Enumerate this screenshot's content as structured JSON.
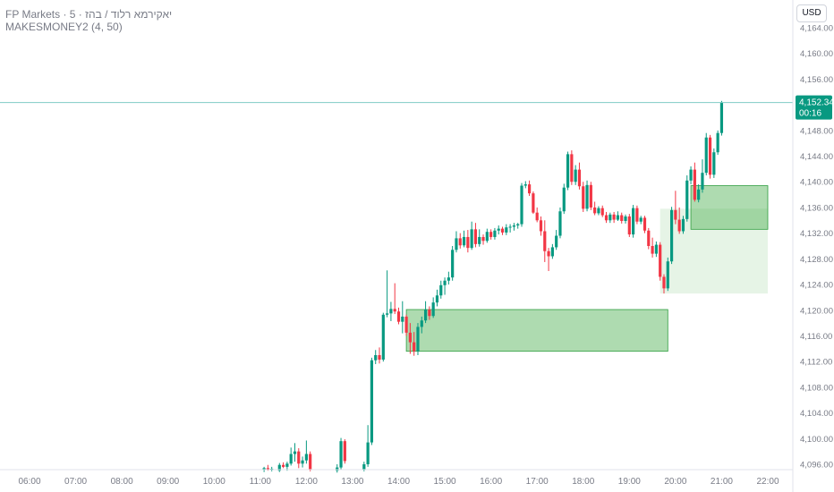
{
  "header": {
    "symbol_line": "FP Markets · 5 · יאקירמא רלוד / בהז",
    "indicator_line": "MAKESMONEY2 (4, 50)"
  },
  "currency_button": "USD",
  "last_price": {
    "value": "4,152.34",
    "countdown": "00:16"
  },
  "colors": {
    "up": "#089981",
    "down": "#f23645",
    "zone": "#4caf50",
    "price_line": "#80cbc4",
    "axis_text": "#787b86"
  },
  "chart_data": {
    "type": "candlestick",
    "x_tick_labels": [
      "06:00",
      "07:00",
      "08:00",
      "09:00",
      "10:00",
      "11:00",
      "12:00",
      "13:00",
      "14:00",
      "15:00",
      "16:00",
      "17:00",
      "18:00",
      "19:00",
      "20:00",
      "21:00",
      "22:00"
    ],
    "y_tick_labels": [
      "4,164.00",
      "4,160.00",
      "4,156.00",
      "4,148.00",
      "4,144.00",
      "4,140.00",
      "4,136.00",
      "4,132.00",
      "4,128.00",
      "4,124.00",
      "4,120.00",
      "4,116.00",
      "4,112.00",
      "4,108.00",
      "4,104.00",
      "4,100.00",
      "4,096.00"
    ],
    "ylim": [
      4094.5,
      4165
    ],
    "last_price": 4152.34,
    "candles": [
      {
        "t": "11:05",
        "o": 4095.2,
        "h": 4095.6,
        "l": 4094.8,
        "c": 4095.4
      },
      {
        "t": "11:10",
        "o": 4095.4,
        "h": 4095.9,
        "l": 4095.0,
        "c": 4095.1
      },
      {
        "t": "11:15",
        "o": 4095.1,
        "h": 4095.6,
        "l": 4094.9,
        "c": 4095.3
      },
      {
        "t": "11:25",
        "o": 4095.0,
        "h": 4096.2,
        "l": 4094.8,
        "c": 4095.9
      },
      {
        "t": "11:30",
        "o": 4095.9,
        "h": 4096.3,
        "l": 4095.4,
        "c": 4095.6
      },
      {
        "t": "11:35",
        "o": 4095.6,
        "h": 4096.4,
        "l": 4095.0,
        "c": 4096.1
      },
      {
        "t": "11:40",
        "o": 4096.1,
        "h": 4098.6,
        "l": 4095.8,
        "c": 4097.6
      },
      {
        "t": "11:45",
        "o": 4097.6,
        "h": 4099.3,
        "l": 4096.4,
        "c": 4098.0
      },
      {
        "t": "11:50",
        "o": 4098.0,
        "h": 4098.5,
        "l": 4095.4,
        "c": 4096.1
      },
      {
        "t": "11:55",
        "o": 4096.1,
        "h": 4097.2,
        "l": 4095.5,
        "c": 4096.6
      },
      {
        "t": "12:00",
        "o": 4096.6,
        "h": 4099.7,
        "l": 4096.1,
        "c": 4097.6
      },
      {
        "t": "12:05",
        "o": 4097.6,
        "h": 4098.0,
        "l": 4094.9,
        "c": 4095.2
      },
      {
        "t": "12:40",
        "o": 4095.0,
        "h": 4096.0,
        "l": 4094.7,
        "c": 4095.5
      },
      {
        "t": "12:45",
        "o": 4095.5,
        "h": 4100.1,
        "l": 4095.2,
        "c": 4099.6
      },
      {
        "t": "12:50",
        "o": 4099.6,
        "h": 4099.9,
        "l": 4096.1,
        "c": 4096.5
      },
      {
        "t": "13:15",
        "o": 4095.2,
        "h": 4096.4,
        "l": 4094.9,
        "c": 4096.0
      },
      {
        "t": "13:20",
        "o": 4096.0,
        "h": 4102.1,
        "l": 4095.6,
        "c": 4099.4
      },
      {
        "t": "13:25",
        "o": 4099.4,
        "h": 4112.6,
        "l": 4099.0,
        "c": 4112.2
      },
      {
        "t": "13:30",
        "o": 4112.2,
        "h": 4113.8,
        "l": 4111.6,
        "c": 4113.0
      },
      {
        "t": "13:35",
        "o": 4113.0,
        "h": 4114.2,
        "l": 4111.7,
        "c": 4112.3
      },
      {
        "t": "13:40",
        "o": 4112.3,
        "h": 4119.6,
        "l": 4112.0,
        "c": 4119.3
      },
      {
        "t": "13:45",
        "o": 4119.3,
        "h": 4126.2,
        "l": 4118.9,
        "c": 4119.5
      },
      {
        "t": "13:50",
        "o": 4119.5,
        "h": 4121.3,
        "l": 4118.3,
        "c": 4120.2
      },
      {
        "t": "13:55",
        "o": 4120.2,
        "h": 4124.2,
        "l": 4119.4,
        "c": 4119.8
      },
      {
        "t": "14:00",
        "o": 4119.8,
        "h": 4120.4,
        "l": 4117.8,
        "c": 4118.2
      },
      {
        "t": "14:05",
        "o": 4118.2,
        "h": 4121.4,
        "l": 4116.4,
        "c": 4119.0
      },
      {
        "t": "14:10",
        "o": 4119.0,
        "h": 4119.3,
        "l": 4116.0,
        "c": 4116.5
      },
      {
        "t": "14:15",
        "o": 4116.5,
        "h": 4118.0,
        "l": 4113.2,
        "c": 4115.0
      },
      {
        "t": "14:20",
        "o": 4115.0,
        "h": 4116.6,
        "l": 4112.9,
        "c": 4113.6
      },
      {
        "t": "14:25",
        "o": 4113.6,
        "h": 4118.0,
        "l": 4113.0,
        "c": 4117.4
      },
      {
        "t": "14:30",
        "o": 4117.4,
        "h": 4119.0,
        "l": 4116.4,
        "c": 4118.4
      },
      {
        "t": "14:35",
        "o": 4118.4,
        "h": 4121.4,
        "l": 4118.0,
        "c": 4120.1
      },
      {
        "t": "14:40",
        "o": 4120.1,
        "h": 4120.6,
        "l": 4118.5,
        "c": 4119.1
      },
      {
        "t": "14:45",
        "o": 4119.1,
        "h": 4122.0,
        "l": 4118.8,
        "c": 4121.2
      },
      {
        "t": "14:50",
        "o": 4121.2,
        "h": 4123.2,
        "l": 4120.6,
        "c": 4122.3
      },
      {
        "t": "14:55",
        "o": 4122.3,
        "h": 4124.6,
        "l": 4121.8,
        "c": 4123.9
      },
      {
        "t": "15:00",
        "o": 4123.9,
        "h": 4125.1,
        "l": 4122.4,
        "c": 4124.6
      },
      {
        "t": "15:05",
        "o": 4124.6,
        "h": 4126.0,
        "l": 4124.0,
        "c": 4125.1
      },
      {
        "t": "15:10",
        "o": 4125.1,
        "h": 4130.0,
        "l": 4124.6,
        "c": 4129.4
      },
      {
        "t": "15:15",
        "o": 4129.4,
        "h": 4132.3,
        "l": 4129.0,
        "c": 4131.2
      },
      {
        "t": "15:20",
        "o": 4131.2,
        "h": 4132.0,
        "l": 4129.6,
        "c": 4130.1
      },
      {
        "t": "15:25",
        "o": 4130.1,
        "h": 4132.4,
        "l": 4129.8,
        "c": 4131.4
      },
      {
        "t": "15:30",
        "o": 4131.4,
        "h": 4132.5,
        "l": 4129.0,
        "c": 4129.7
      },
      {
        "t": "15:35",
        "o": 4129.7,
        "h": 4133.8,
        "l": 4129.4,
        "c": 4132.6
      },
      {
        "t": "15:40",
        "o": 4132.6,
        "h": 4133.6,
        "l": 4129.8,
        "c": 4130.3
      },
      {
        "t": "15:45",
        "o": 4130.3,
        "h": 4132.6,
        "l": 4129.9,
        "c": 4131.4
      },
      {
        "t": "15:50",
        "o": 4131.4,
        "h": 4131.8,
        "l": 4130.2,
        "c": 4130.8
      },
      {
        "t": "15:55",
        "o": 4130.8,
        "h": 4132.7,
        "l": 4130.5,
        "c": 4132.2
      },
      {
        "t": "16:00",
        "o": 4132.2,
        "h": 4132.6,
        "l": 4131.0,
        "c": 4131.4
      },
      {
        "t": "16:05",
        "o": 4131.4,
        "h": 4132.8,
        "l": 4131.0,
        "c": 4132.4
      },
      {
        "t": "16:10",
        "o": 4132.4,
        "h": 4133.2,
        "l": 4131.8,
        "c": 4132.7
      },
      {
        "t": "16:15",
        "o": 4132.7,
        "h": 4133.0,
        "l": 4131.7,
        "c": 4132.1
      },
      {
        "t": "16:20",
        "o": 4132.1,
        "h": 4133.4,
        "l": 4131.7,
        "c": 4132.9
      },
      {
        "t": "16:25",
        "o": 4132.9,
        "h": 4133.4,
        "l": 4132.1,
        "c": 4133.0
      },
      {
        "t": "16:30",
        "o": 4133.0,
        "h": 4133.6,
        "l": 4132.4,
        "c": 4133.2
      },
      {
        "t": "16:35",
        "o": 4133.2,
        "h": 4133.6,
        "l": 4132.7,
        "c": 4133.4
      },
      {
        "t": "16:40",
        "o": 4133.4,
        "h": 4139.8,
        "l": 4133.0,
        "c": 4139.4
      },
      {
        "t": "16:45",
        "o": 4139.4,
        "h": 4140.1,
        "l": 4139.0,
        "c": 4139.6
      },
      {
        "t": "16:50",
        "o": 4139.6,
        "h": 4140.2,
        "l": 4137.8,
        "c": 4138.2
      },
      {
        "t": "16:55",
        "o": 4138.2,
        "h": 4138.5,
        "l": 4135.0,
        "c": 4135.2
      },
      {
        "t": "17:00",
        "o": 4135.2,
        "h": 4136.0,
        "l": 4133.7,
        "c": 4134.0
      },
      {
        "t": "17:05",
        "o": 4134.0,
        "h": 4134.6,
        "l": 4131.6,
        "c": 4132.3
      },
      {
        "t": "17:10",
        "o": 4132.3,
        "h": 4134.0,
        "l": 4127.5,
        "c": 4129.2
      },
      {
        "t": "17:15",
        "o": 4129.2,
        "h": 4129.7,
        "l": 4126.1,
        "c": 4128.4
      },
      {
        "t": "17:20",
        "o": 4128.4,
        "h": 4130.3,
        "l": 4128.0,
        "c": 4129.8
      },
      {
        "t": "17:25",
        "o": 4129.8,
        "h": 4132.5,
        "l": 4129.4,
        "c": 4131.6
      },
      {
        "t": "17:30",
        "o": 4131.6,
        "h": 4136.0,
        "l": 4131.2,
        "c": 4135.4
      },
      {
        "t": "17:35",
        "o": 4135.4,
        "h": 4139.7,
        "l": 4135.0,
        "c": 4139.1
      },
      {
        "t": "17:40",
        "o": 4139.1,
        "h": 4144.7,
        "l": 4138.7,
        "c": 4144.3
      },
      {
        "t": "17:45",
        "o": 4144.3,
        "h": 4144.9,
        "l": 4139.5,
        "c": 4140.0
      },
      {
        "t": "17:50",
        "o": 4140.0,
        "h": 4142.6,
        "l": 4139.5,
        "c": 4141.9
      },
      {
        "t": "17:55",
        "o": 4141.9,
        "h": 4143.0,
        "l": 4138.8,
        "c": 4139.3
      },
      {
        "t": "18:00",
        "o": 4139.3,
        "h": 4140.0,
        "l": 4135.3,
        "c": 4135.8
      },
      {
        "t": "18:05",
        "o": 4135.8,
        "h": 4140.2,
        "l": 4135.4,
        "c": 4139.5
      },
      {
        "t": "18:10",
        "o": 4139.5,
        "h": 4140.0,
        "l": 4135.6,
        "c": 4136.0
      },
      {
        "t": "18:15",
        "o": 4136.0,
        "h": 4136.9,
        "l": 4134.8,
        "c": 4135.1
      },
      {
        "t": "18:20",
        "o": 4135.1,
        "h": 4136.2,
        "l": 4134.8,
        "c": 4135.9
      },
      {
        "t": "18:25",
        "o": 4135.9,
        "h": 4136.3,
        "l": 4134.5,
        "c": 4134.8
      },
      {
        "t": "18:30",
        "o": 4134.8,
        "h": 4135.3,
        "l": 4133.6,
        "c": 4134.0
      },
      {
        "t": "18:35",
        "o": 4134.0,
        "h": 4135.2,
        "l": 4133.6,
        "c": 4134.9
      },
      {
        "t": "18:40",
        "o": 4134.9,
        "h": 4135.3,
        "l": 4133.6,
        "c": 4134.1
      },
      {
        "t": "18:45",
        "o": 4134.1,
        "h": 4135.4,
        "l": 4133.9,
        "c": 4134.8
      },
      {
        "t": "18:50",
        "o": 4134.8,
        "h": 4135.2,
        "l": 4133.5,
        "c": 4133.9
      },
      {
        "t": "18:55",
        "o": 4133.9,
        "h": 4134.9,
        "l": 4133.5,
        "c": 4134.6
      },
      {
        "t": "19:00",
        "o": 4134.6,
        "h": 4135.0,
        "l": 4131.4,
        "c": 4131.8
      },
      {
        "t": "19:05",
        "o": 4131.8,
        "h": 4136.4,
        "l": 4131.3,
        "c": 4135.9
      },
      {
        "t": "19:10",
        "o": 4135.9,
        "h": 4136.3,
        "l": 4133.4,
        "c": 4133.8
      },
      {
        "t": "19:15",
        "o": 4133.8,
        "h": 4134.7,
        "l": 4133.4,
        "c": 4134.4
      },
      {
        "t": "19:20",
        "o": 4134.4,
        "h": 4134.7,
        "l": 4132.0,
        "c": 4132.4
      },
      {
        "t": "19:25",
        "o": 4132.4,
        "h": 4132.8,
        "l": 4129.5,
        "c": 4130.0
      },
      {
        "t": "19:30",
        "o": 4130.0,
        "h": 4131.3,
        "l": 4128.2,
        "c": 4128.8
      },
      {
        "t": "19:35",
        "o": 4128.8,
        "h": 4130.7,
        "l": 4128.3,
        "c": 4130.2
      },
      {
        "t": "19:40",
        "o": 4130.2,
        "h": 4130.6,
        "l": 4124.6,
        "c": 4125.2
      },
      {
        "t": "19:45",
        "o": 4125.2,
        "h": 4125.6,
        "l": 4122.6,
        "c": 4123.4
      },
      {
        "t": "19:50",
        "o": 4123.4,
        "h": 4128.2,
        "l": 4123.0,
        "c": 4127.6
      },
      {
        "t": "19:55",
        "o": 4127.6,
        "h": 4136.1,
        "l": 4127.2,
        "c": 4135.6
      },
      {
        "t": "20:00",
        "o": 4135.6,
        "h": 4138.6,
        "l": 4133.4,
        "c": 4134.1
      },
      {
        "t": "20:05",
        "o": 4134.1,
        "h": 4136.0,
        "l": 4131.9,
        "c": 4132.3
      },
      {
        "t": "20:10",
        "o": 4132.3,
        "h": 4134.7,
        "l": 4131.9,
        "c": 4134.2
      },
      {
        "t": "20:15",
        "o": 4134.2,
        "h": 4141.0,
        "l": 4133.8,
        "c": 4140.2
      },
      {
        "t": "20:20",
        "o": 4140.2,
        "h": 4142.4,
        "l": 4139.6,
        "c": 4141.9
      },
      {
        "t": "20:25",
        "o": 4141.9,
        "h": 4143.0,
        "l": 4136.9,
        "c": 4137.2
      },
      {
        "t": "20:30",
        "o": 4137.2,
        "h": 4139.6,
        "l": 4136.8,
        "c": 4138.8
      },
      {
        "t": "20:35",
        "o": 4138.8,
        "h": 4143.5,
        "l": 4138.3,
        "c": 4141.4
      },
      {
        "t": "20:40",
        "o": 4141.4,
        "h": 4147.6,
        "l": 4141.0,
        "c": 4146.9
      },
      {
        "t": "20:45",
        "o": 4146.9,
        "h": 4147.3,
        "l": 4140.5,
        "c": 4141.1
      },
      {
        "t": "20:50",
        "o": 4141.1,
        "h": 4145.2,
        "l": 4140.6,
        "c": 4144.6
      },
      {
        "t": "20:55",
        "o": 4144.6,
        "h": 4148.0,
        "l": 4144.2,
        "c": 4147.6
      },
      {
        "t": "21:00",
        "o": 4147.6,
        "h": 4152.6,
        "l": 4147.2,
        "c": 4152.34
      }
    ],
    "zones": [
      {
        "from": "14:10",
        "to": "19:50",
        "top": 4120.1,
        "bottom": 4113.6,
        "style": "solid"
      },
      {
        "from": "20:20",
        "to": "22:00",
        "top": 4139.4,
        "bottom": 4132.6,
        "style": "solid"
      },
      {
        "from": "19:40",
        "to": "22:00",
        "top": 4135.8,
        "bottom": 4122.6,
        "style": "light"
      }
    ]
  }
}
